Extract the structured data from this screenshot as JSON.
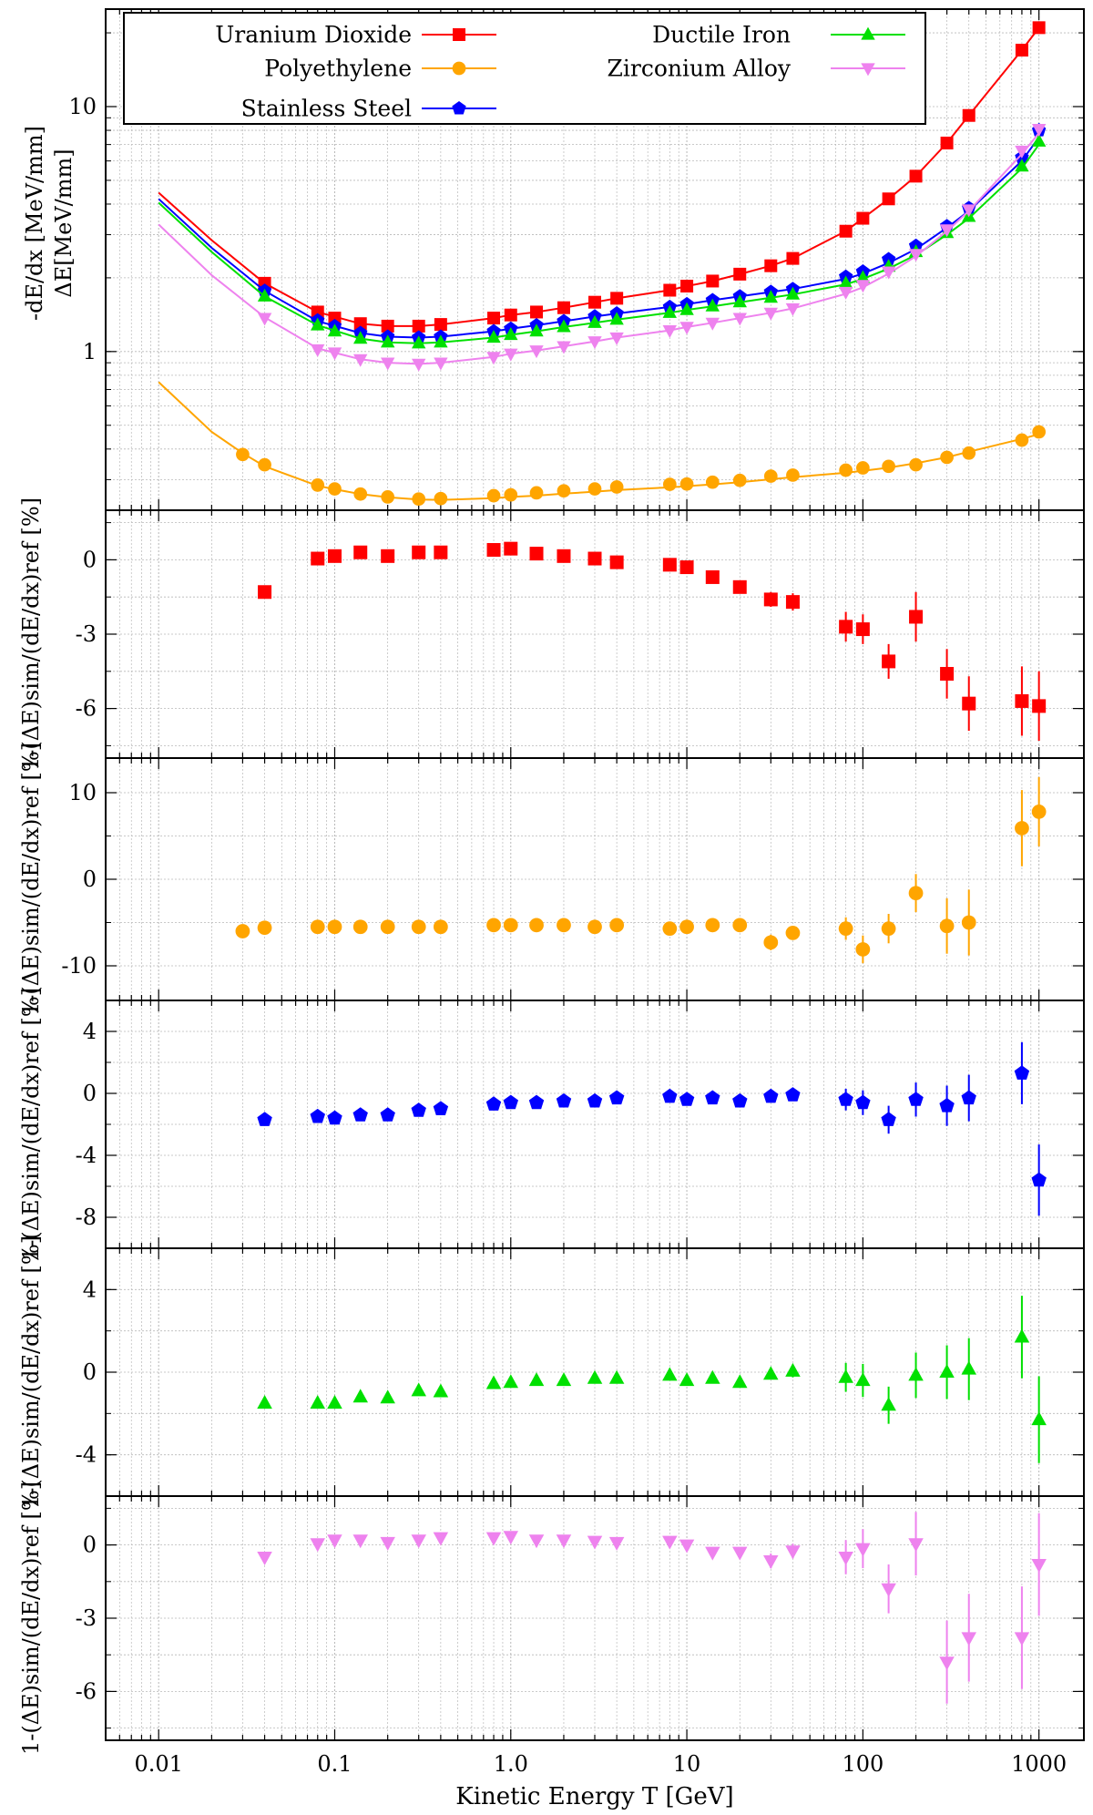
{
  "colors": {
    "uranium": "#ff0000",
    "polyethylene": "#ffa500",
    "steel": "#0000ff",
    "iron": "#00e000",
    "zirconium": "#ee82ee",
    "grid": "#b8b8b8"
  },
  "x_axis": {
    "label": "Kinetic Energy T [GeV]",
    "scale": "log",
    "range": [
      0.005,
      1800
    ],
    "ticks": [
      0.01,
      0.1,
      1.0,
      10,
      100,
      1000
    ],
    "tick_labels": [
      "0.01",
      "0.1",
      "1.0",
      "10",
      "100",
      "1000"
    ]
  },
  "legend": [
    {
      "label": "Uranium Dioxide",
      "series": "uranium",
      "marker": "square"
    },
    {
      "label": "Polyethylene",
      "series": "polyethylene",
      "marker": "circle"
    },
    {
      "label": "Stainless Steel",
      "series": "steel",
      "marker": "pentagon"
    },
    {
      "label": "Ductile Iron",
      "series": "iron",
      "marker": "triangle-up"
    },
    {
      "label": "Zirconium Alloy",
      "series": "zirconium",
      "marker": "triangle-down"
    }
  ],
  "chart_data": [
    {
      "type": "line",
      "panel": "energy-loss",
      "ylabel_lines": [
        "-dE/dx [MeV/mm]",
        "ΔE[MeV/mm]"
      ],
      "yscale": "log",
      "ylim": [
        0.225,
        25
      ],
      "y_ticks": [
        1,
        10
      ],
      "y_tick_labels": [
        "1",
        "10"
      ],
      "grid": true,
      "legend_position": "top-left",
      "series": [
        {
          "key": "uranium",
          "name": "Uranium Dioxide",
          "curve_x": [
            0.01,
            0.02,
            0.04,
            0.08,
            0.14,
            0.2,
            0.3,
            0.4,
            0.8,
            1.0,
            1.4,
            2,
            3,
            4,
            8,
            10,
            14,
            20,
            30,
            40,
            80,
            100,
            140,
            200,
            300,
            400,
            800,
            1000
          ],
          "curve_y": [
            4.45,
            2.85,
            1.9,
            1.45,
            1.3,
            1.27,
            1.27,
            1.29,
            1.37,
            1.41,
            1.45,
            1.51,
            1.59,
            1.65,
            1.78,
            1.85,
            1.94,
            2.07,
            2.24,
            2.4,
            3.1,
            3.5,
            4.2,
            5.2,
            7.1,
            9.2,
            17.0,
            21.0
          ],
          "points_x": [
            0.04,
            0.08,
            0.1,
            0.14,
            0.2,
            0.3,
            0.4,
            0.8,
            1.0,
            1.4,
            2,
            3,
            4,
            8,
            10,
            14,
            20,
            30,
            40,
            80,
            100,
            140,
            200,
            300,
            400,
            800,
            1000
          ],
          "points_y": [
            1.9,
            1.45,
            1.37,
            1.3,
            1.27,
            1.27,
            1.29,
            1.37,
            1.41,
            1.45,
            1.51,
            1.59,
            1.65,
            1.78,
            1.85,
            1.94,
            2.07,
            2.24,
            2.4,
            3.1,
            3.5,
            4.2,
            5.2,
            7.1,
            9.2,
            17.0,
            21.0
          ]
        },
        {
          "key": "polyethylene",
          "name": "Polyethylene",
          "curve_x": [
            0.01,
            0.02,
            0.03,
            0.04,
            0.08,
            0.1,
            0.14,
            0.2,
            0.3,
            0.4,
            0.8,
            1.0,
            1.4,
            2,
            3,
            4,
            8,
            10,
            14,
            20,
            30,
            40,
            80,
            100,
            140,
            200,
            300,
            400,
            800,
            1000
          ],
          "curve_y": [
            0.75,
            0.47,
            0.385,
            0.34,
            0.283,
            0.274,
            0.262,
            0.254,
            0.249,
            0.248,
            0.252,
            0.255,
            0.258,
            0.263,
            0.268,
            0.272,
            0.279,
            0.282,
            0.287,
            0.293,
            0.301,
            0.307,
            0.32,
            0.326,
            0.336,
            0.35,
            0.37,
            0.39,
            0.44,
            0.46
          ],
          "points_x": [
            0.03,
            0.04,
            0.08,
            0.1,
            0.14,
            0.2,
            0.3,
            0.4,
            0.8,
            1.0,
            1.4,
            2,
            3,
            4,
            8,
            10,
            14,
            20,
            30,
            40,
            80,
            100,
            140,
            200,
            300,
            400,
            800,
            1000
          ],
          "points_y": [
            0.38,
            0.345,
            0.285,
            0.275,
            0.262,
            0.255,
            0.25,
            0.251,
            0.258,
            0.26,
            0.265,
            0.27,
            0.275,
            0.28,
            0.287,
            0.288,
            0.293,
            0.298,
            0.31,
            0.313,
            0.328,
            0.335,
            0.34,
            0.345,
            0.37,
            0.385,
            0.435,
            0.47
          ]
        },
        {
          "key": "steel",
          "name": "Stainless Steel",
          "curve_x": [
            0.01,
            0.02,
            0.04,
            0.08,
            0.14,
            0.2,
            0.3,
            0.4,
            0.8,
            1.0,
            1.4,
            2,
            3,
            4,
            8,
            10,
            14,
            20,
            30,
            40,
            80,
            100,
            140,
            200,
            300,
            400,
            800,
            1000
          ],
          "curve_y": [
            4.2,
            2.65,
            1.77,
            1.33,
            1.19,
            1.15,
            1.14,
            1.15,
            1.21,
            1.24,
            1.28,
            1.33,
            1.39,
            1.43,
            1.52,
            1.56,
            1.62,
            1.68,
            1.75,
            1.8,
            1.98,
            2.08,
            2.3,
            2.62,
            3.2,
            3.75,
            6.0,
            7.5
          ],
          "points_x": [
            0.04,
            0.08,
            0.1,
            0.14,
            0.2,
            0.3,
            0.4,
            0.8,
            1.0,
            1.4,
            2,
            3,
            4,
            8,
            10,
            14,
            20,
            30,
            40,
            80,
            100,
            140,
            200,
            300,
            400,
            800,
            1000
          ],
          "points_y": [
            1.77,
            1.34,
            1.27,
            1.19,
            1.15,
            1.14,
            1.15,
            1.21,
            1.24,
            1.28,
            1.33,
            1.39,
            1.43,
            1.52,
            1.56,
            1.62,
            1.68,
            1.75,
            1.8,
            2.02,
            2.12,
            2.38,
            2.7,
            3.25,
            3.85,
            6.2,
            8.0
          ]
        },
        {
          "key": "iron",
          "name": "Ductile Iron",
          "curve_x": [
            0.01,
            0.02,
            0.04,
            0.08,
            0.14,
            0.2,
            0.3,
            0.4,
            0.8,
            1.0,
            1.4,
            2,
            3,
            4,
            8,
            10,
            14,
            20,
            30,
            40,
            80,
            100,
            140,
            200,
            300,
            400,
            800,
            1000
          ],
          "curve_y": [
            4.05,
            2.55,
            1.68,
            1.28,
            1.13,
            1.09,
            1.08,
            1.09,
            1.14,
            1.17,
            1.21,
            1.26,
            1.31,
            1.35,
            1.44,
            1.48,
            1.53,
            1.59,
            1.66,
            1.71,
            1.88,
            1.98,
            2.18,
            2.48,
            3.0,
            3.5,
            5.6,
            7.0
          ],
          "points_x": [
            0.04,
            0.08,
            0.1,
            0.14,
            0.2,
            0.3,
            0.4,
            0.8,
            1.0,
            1.4,
            2,
            3,
            4,
            8,
            10,
            14,
            20,
            30,
            40,
            80,
            100,
            140,
            200,
            300,
            400,
            800,
            1000
          ],
          "points_y": [
            1.68,
            1.28,
            1.21,
            1.13,
            1.09,
            1.08,
            1.09,
            1.14,
            1.17,
            1.21,
            1.26,
            1.31,
            1.35,
            1.44,
            1.48,
            1.53,
            1.59,
            1.66,
            1.71,
            1.9,
            2.0,
            2.22,
            2.55,
            3.05,
            3.55,
            5.7,
            7.2
          ]
        },
        {
          "key": "zirconium",
          "name": "Zirconium Alloy",
          "curve_x": [
            0.01,
            0.02,
            0.04,
            0.08,
            0.14,
            0.2,
            0.3,
            0.4,
            0.8,
            1.0,
            1.4,
            2,
            3,
            4,
            8,
            10,
            14,
            20,
            30,
            40,
            80,
            100,
            140,
            200,
            300,
            400,
            800,
            1000
          ],
          "curve_y": [
            3.3,
            2.05,
            1.38,
            1.03,
            0.93,
            0.9,
            0.89,
            0.9,
            0.95,
            0.98,
            1.01,
            1.05,
            1.1,
            1.14,
            1.22,
            1.26,
            1.31,
            1.37,
            1.44,
            1.5,
            1.72,
            1.83,
            2.08,
            2.45,
            3.1,
            3.75,
            6.4,
            7.8
          ],
          "points_x": [
            0.04,
            0.08,
            0.1,
            0.14,
            0.2,
            0.3,
            0.4,
            0.8,
            1.0,
            1.4,
            2,
            3,
            4,
            8,
            10,
            14,
            20,
            30,
            40,
            80,
            100,
            140,
            200,
            300,
            400,
            800,
            1000
          ],
          "points_y": [
            1.37,
            1.02,
            0.99,
            0.93,
            0.9,
            0.89,
            0.9,
            0.95,
            0.98,
            1.01,
            1.05,
            1.1,
            1.14,
            1.22,
            1.26,
            1.31,
            1.37,
            1.44,
            1.5,
            1.75,
            1.87,
            2.12,
            2.5,
            3.15,
            3.8,
            6.6,
            8.1
          ]
        }
      ]
    },
    {
      "type": "scatter",
      "panel": "residual-uranium",
      "series_key": "uranium",
      "marker": "square",
      "ylabel": "1-(ΔE)sim/(dE/dx)ref [%]",
      "ylim": [
        -8,
        2
      ],
      "y_ticks": [
        0,
        -3,
        -6
      ],
      "y_tick_labels": [
        "0",
        "-3",
        "-6"
      ],
      "x": [
        0.04,
        0.08,
        0.1,
        0.14,
        0.2,
        0.3,
        0.4,
        0.8,
        1.0,
        1.4,
        2,
        3,
        4,
        8,
        10,
        14,
        20,
        30,
        40,
        80,
        100,
        140,
        200,
        300,
        400,
        800,
        1000
      ],
      "y": [
        -1.3,
        0.05,
        0.15,
        0.3,
        0.15,
        0.3,
        0.3,
        0.4,
        0.45,
        0.25,
        0.15,
        0.05,
        -0.1,
        -0.2,
        -0.3,
        -0.7,
        -1.1,
        -1.6,
        -1.7,
        -2.7,
        -2.8,
        -4.1,
        -2.3,
        -4.6,
        -5.8,
        -5.7,
        -5.9
      ],
      "err": [
        0.1,
        0.1,
        0.1,
        0.1,
        0.1,
        0.1,
        0.1,
        0.1,
        0.1,
        0.1,
        0.1,
        0.1,
        0.1,
        0.1,
        0.1,
        0.1,
        0.1,
        0.3,
        0.35,
        0.6,
        0.6,
        0.7,
        1.0,
        1.0,
        1.1,
        1.4,
        1.4
      ]
    },
    {
      "type": "scatter",
      "panel": "residual-polyethylene",
      "series_key": "polyethylene",
      "marker": "circle",
      "ylabel": "1-(ΔE)sim/(dE/dx)ref [%]",
      "ylim": [
        -14,
        14
      ],
      "y_ticks": [
        10,
        0,
        -10
      ],
      "y_tick_labels": [
        "10",
        "0",
        "-10"
      ],
      "x": [
        0.03,
        0.04,
        0.08,
        0.1,
        0.14,
        0.2,
        0.3,
        0.4,
        0.8,
        1.0,
        1.4,
        2,
        3,
        4,
        8,
        10,
        14,
        20,
        30,
        40,
        80,
        100,
        140,
        200,
        300,
        400,
        800,
        1000
      ],
      "y": [
        -6.0,
        -5.6,
        -5.5,
        -5.5,
        -5.5,
        -5.5,
        -5.5,
        -5.5,
        -5.3,
        -5.3,
        -5.3,
        -5.3,
        -5.5,
        -5.3,
        -5.7,
        -5.5,
        -5.3,
        -5.3,
        -7.3,
        -6.2,
        -5.7,
        -8.1,
        -5.7,
        -1.6,
        -5.4,
        -5.0,
        5.9,
        7.8
      ],
      "err": [
        0.2,
        0.2,
        0.2,
        0.2,
        0.2,
        0.2,
        0.2,
        0.2,
        0.2,
        0.2,
        0.2,
        0.2,
        0.2,
        0.2,
        0.2,
        0.2,
        0.2,
        0.2,
        0.9,
        0.6,
        1.3,
        1.6,
        1.7,
        2.2,
        3.2,
        3.8,
        4.4,
        4.0
      ]
    },
    {
      "type": "scatter",
      "panel": "residual-steel",
      "series_key": "steel",
      "marker": "pentagon",
      "ylabel": "1-(ΔE)sim/(dE/dx)ref [%]",
      "ylim": [
        -10,
        6
      ],
      "y_ticks": [
        4,
        0,
        -4,
        -8
      ],
      "y_tick_labels": [
        "4",
        "0",
        "-4",
        "-8"
      ],
      "x": [
        0.04,
        0.08,
        0.1,
        0.14,
        0.2,
        0.3,
        0.4,
        0.8,
        1.0,
        1.4,
        2,
        3,
        4,
        8,
        10,
        14,
        20,
        30,
        40,
        80,
        100,
        140,
        200,
        300,
        400,
        800,
        1000
      ],
      "y": [
        -1.7,
        -1.5,
        -1.6,
        -1.4,
        -1.4,
        -1.1,
        -1.0,
        -0.7,
        -0.6,
        -0.6,
        -0.5,
        -0.5,
        -0.3,
        -0.2,
        -0.4,
        -0.3,
        -0.5,
        -0.2,
        -0.1,
        -0.4,
        -0.6,
        -1.7,
        -0.4,
        -0.8,
        -0.3,
        1.3,
        -5.6
      ],
      "err": [
        0.15,
        0.15,
        0.15,
        0.15,
        0.15,
        0.15,
        0.15,
        0.15,
        0.15,
        0.15,
        0.15,
        0.15,
        0.15,
        0.15,
        0.15,
        0.15,
        0.15,
        0.15,
        0.15,
        0.7,
        0.8,
        0.9,
        1.1,
        1.3,
        1.5,
        2.0,
        2.3
      ]
    },
    {
      "type": "scatter",
      "panel": "residual-iron",
      "series_key": "iron",
      "marker": "triangle-up",
      "ylabel": "1-(ΔE)sim/(dE/dx)ref [%]",
      "ylim": [
        -6,
        6
      ],
      "y_ticks": [
        4,
        0,
        -4
      ],
      "y_tick_labels": [
        "4",
        "0",
        "-4"
      ],
      "x": [
        0.04,
        0.08,
        0.1,
        0.14,
        0.2,
        0.3,
        0.4,
        0.8,
        1.0,
        1.4,
        2,
        3,
        4,
        8,
        10,
        14,
        20,
        30,
        40,
        80,
        100,
        140,
        200,
        300,
        400,
        800,
        1000
      ],
      "y": [
        -1.5,
        -1.5,
        -1.5,
        -1.2,
        -1.25,
        -0.9,
        -0.95,
        -0.55,
        -0.5,
        -0.4,
        -0.4,
        -0.3,
        -0.3,
        -0.15,
        -0.4,
        -0.3,
        -0.5,
        -0.1,
        0.05,
        -0.25,
        -0.4,
        -1.6,
        -0.15,
        0.0,
        0.15,
        1.7,
        -2.3
      ],
      "err": [
        0.15,
        0.15,
        0.15,
        0.15,
        0.15,
        0.15,
        0.15,
        0.15,
        0.15,
        0.15,
        0.15,
        0.15,
        0.15,
        0.15,
        0.15,
        0.15,
        0.15,
        0.15,
        0.3,
        0.7,
        0.8,
        0.9,
        1.1,
        1.3,
        1.5,
        2.0,
        2.1
      ]
    },
    {
      "type": "scatter",
      "panel": "residual-zirconium",
      "series_key": "zirconium",
      "marker": "triangle-down",
      "ylabel": "1-(ΔE)sim/(dE/dx)ref [%]",
      "ylim": [
        -8,
        2
      ],
      "y_ticks": [
        0,
        -3,
        -6
      ],
      "y_tick_labels": [
        "0",
        "-3",
        "-6"
      ],
      "x": [
        0.04,
        0.08,
        0.1,
        0.14,
        0.2,
        0.3,
        0.4,
        0.8,
        1.0,
        1.4,
        2,
        3,
        4,
        8,
        10,
        14,
        20,
        30,
        40,
        80,
        100,
        140,
        200,
        300,
        400,
        800,
        1000
      ],
      "y": [
        -0.5,
        0.05,
        0.2,
        0.2,
        0.1,
        0.2,
        0.3,
        0.3,
        0.35,
        0.2,
        0.2,
        0.15,
        0.1,
        0.15,
        0.0,
        -0.3,
        -0.3,
        -0.65,
        -0.25,
        -0.5,
        -0.15,
        -1.8,
        0.05,
        -4.8,
        -3.8,
        -3.8,
        -0.8
      ],
      "err": [
        0.1,
        0.1,
        0.1,
        0.1,
        0.1,
        0.1,
        0.1,
        0.1,
        0.1,
        0.1,
        0.1,
        0.1,
        0.1,
        0.1,
        0.1,
        0.1,
        0.1,
        0.3,
        0.3,
        0.7,
        0.8,
        1.0,
        1.3,
        1.7,
        1.8,
        2.1,
        2.1
      ]
    }
  ]
}
